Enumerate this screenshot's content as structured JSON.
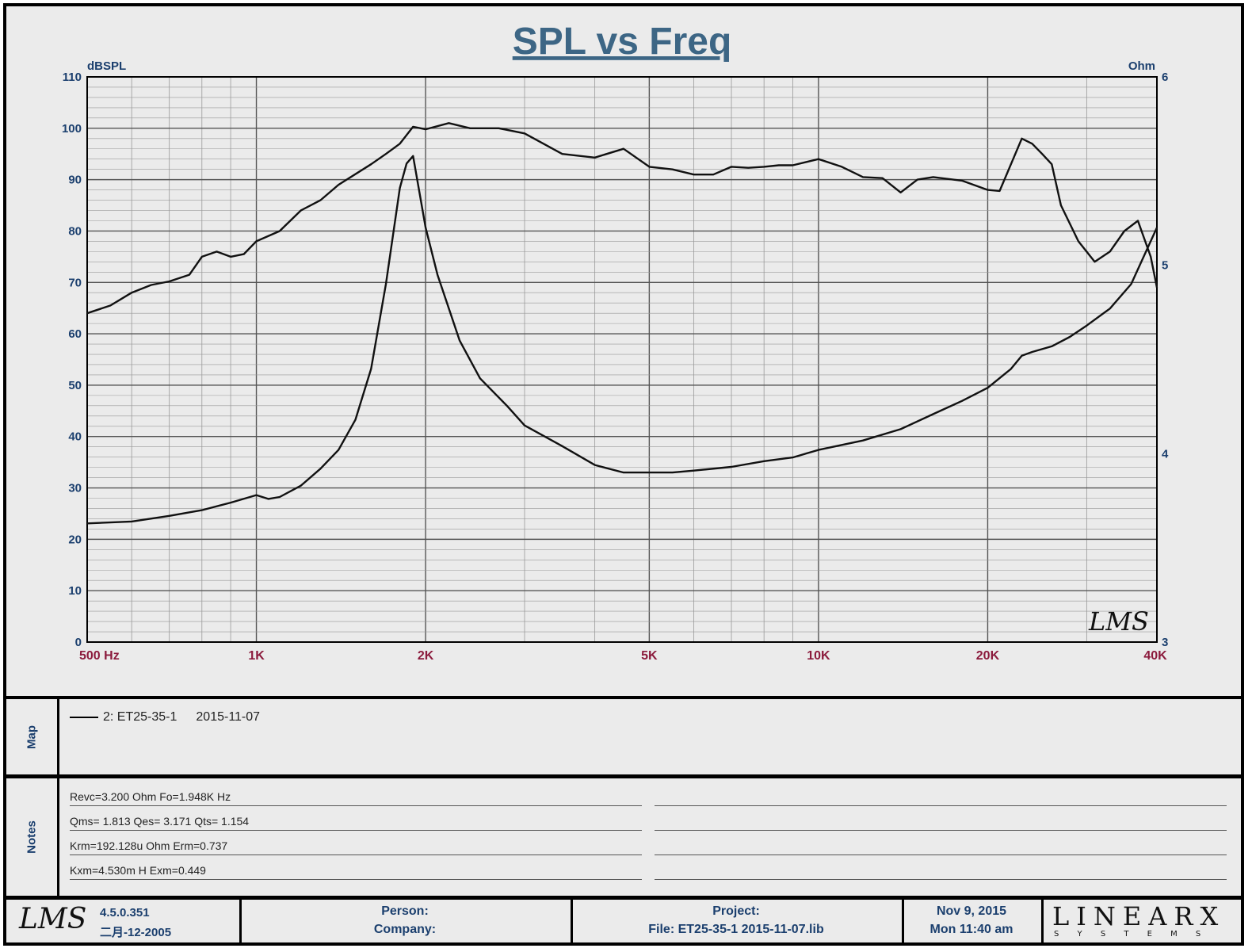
{
  "chart_data": {
    "type": "line",
    "title": "SPL vs Freq",
    "y_left_unit": "dBSPL",
    "y_right_unit": "Ohm",
    "x_scale": "log",
    "xlim": [
      500,
      40000
    ],
    "ylim_left": [
      0,
      110
    ],
    "ylim_right": [
      3,
      6
    ],
    "x_ticks": [
      {
        "value": 500,
        "label": "500  Hz"
      },
      {
        "value": 1000,
        "label": "1K"
      },
      {
        "value": 2000,
        "label": "2K"
      },
      {
        "value": 5000,
        "label": "5K"
      },
      {
        "value": 10000,
        "label": "10K"
      },
      {
        "value": 20000,
        "label": "20K"
      },
      {
        "value": 40000,
        "label": "40K"
      }
    ],
    "y_left_ticks": [
      0,
      10,
      20,
      30,
      40,
      50,
      60,
      70,
      80,
      90,
      100,
      110
    ],
    "y_right_ticks": [
      3,
      4,
      5,
      6
    ],
    "grid": true,
    "series": [
      {
        "axis": "left",
        "points": [
          [
            500,
            64
          ],
          [
            550,
            65.5
          ],
          [
            600,
            68
          ],
          [
            650,
            69.5
          ],
          [
            700,
            70.2
          ],
          [
            760,
            71.5
          ],
          [
            800,
            75
          ],
          [
            850,
            76
          ],
          [
            900,
            75
          ],
          [
            950,
            75.5
          ],
          [
            1000,
            78
          ],
          [
            1100,
            80
          ],
          [
            1200,
            84
          ],
          [
            1300,
            86
          ],
          [
            1400,
            89
          ],
          [
            1600,
            93
          ],
          [
            1700,
            95
          ],
          [
            1800,
            97
          ],
          [
            1900,
            100.3
          ],
          [
            2000,
            99.8
          ],
          [
            2200,
            101
          ],
          [
            2400,
            100
          ],
          [
            2700,
            100
          ],
          [
            3000,
            99
          ],
          [
            3500,
            95
          ],
          [
            4000,
            94.3
          ],
          [
            4500,
            96
          ],
          [
            5000,
            92.5
          ],
          [
            5500,
            92
          ],
          [
            6000,
            91
          ],
          [
            6500,
            91
          ],
          [
            7000,
            92.5
          ],
          [
            7500,
            92.3
          ],
          [
            8000,
            92.5
          ],
          [
            8500,
            92.8
          ],
          [
            9000,
            92.8
          ],
          [
            10000,
            94
          ],
          [
            11000,
            92.5
          ],
          [
            12000,
            90.5
          ],
          [
            13000,
            90.3
          ],
          [
            14000,
            87.5
          ],
          [
            15000,
            90
          ],
          [
            16000,
            90.5
          ],
          [
            18000,
            89.8
          ],
          [
            20000,
            88
          ],
          [
            21000,
            87.8
          ],
          [
            22000,
            93
          ],
          [
            23000,
            98
          ],
          [
            24000,
            97
          ],
          [
            25000,
            95
          ],
          [
            26000,
            93
          ],
          [
            27000,
            85
          ],
          [
            29000,
            78
          ],
          [
            31000,
            74
          ],
          [
            33000,
            76
          ],
          [
            35000,
            80
          ],
          [
            37000,
            82
          ],
          [
            39000,
            75
          ],
          [
            40000,
            69
          ]
        ]
      },
      {
        "axis": "right",
        "points": [
          [
            500,
            3.63
          ],
          [
            600,
            3.64
          ],
          [
            700,
            3.67
          ],
          [
            800,
            3.7
          ],
          [
            900,
            3.74
          ],
          [
            1000,
            3.78
          ],
          [
            1050,
            3.76
          ],
          [
            1100,
            3.77
          ],
          [
            1200,
            3.83
          ],
          [
            1300,
            3.92
          ],
          [
            1400,
            4.02
          ],
          [
            1500,
            4.18
          ],
          [
            1600,
            4.45
          ],
          [
            1700,
            4.9
          ],
          [
            1800,
            5.41
          ],
          [
            1850,
            5.54
          ],
          [
            1900,
            5.58
          ],
          [
            2000,
            5.2
          ],
          [
            2100,
            4.95
          ],
          [
            2300,
            4.6
          ],
          [
            2500,
            4.4
          ],
          [
            2800,
            4.25
          ],
          [
            3000,
            4.15
          ],
          [
            3500,
            4.04
          ],
          [
            4000,
            3.94
          ],
          [
            4500,
            3.9
          ],
          [
            5000,
            3.9
          ],
          [
            5500,
            3.9
          ],
          [
            6000,
            3.91
          ],
          [
            7000,
            3.93
          ],
          [
            8000,
            3.96
          ],
          [
            9000,
            3.98
          ],
          [
            10000,
            4.02
          ],
          [
            12000,
            4.07
          ],
          [
            14000,
            4.13
          ],
          [
            16000,
            4.21
          ],
          [
            18000,
            4.28
          ],
          [
            20000,
            4.35
          ],
          [
            22000,
            4.45
          ],
          [
            23000,
            4.52
          ],
          [
            24000,
            4.54
          ],
          [
            26000,
            4.57
          ],
          [
            28000,
            4.62
          ],
          [
            30000,
            4.68
          ],
          [
            33000,
            4.77
          ],
          [
            36000,
            4.9
          ],
          [
            40000,
            5.2
          ]
        ]
      }
    ]
  },
  "watermark": "LMS",
  "map": {
    "label": "Map",
    "entry_name": "2: ET25-35-1",
    "entry_date": "2015-11-07"
  },
  "notes": {
    "label": "Notes",
    "lines": [
      "Revc=3.200 Ohm  Fo=1.948K Hz",
      "Qms= 1.813  Qes= 3.171  Qts= 1.154",
      "Krm=192.128u Ohm  Erm=0.737",
      "Kxm=4.530m H  Exm=0.449"
    ]
  },
  "footer": {
    "logo": "LMS",
    "version": "4.5.0.351",
    "build_date": "二月-12-2005",
    "person_label": "Person:",
    "company_label": "Company:",
    "project_label": "Project:",
    "file_line": "File: ET25-35-1   2015-11-07.lib",
    "date": "Nov  9, 2015",
    "time": "Mon 11:40 am",
    "brand": "LINEARX",
    "brand_sub": "S Y S T E M S"
  },
  "colors": {
    "axis_label": "#1b3f6e",
    "x_label": "#8b1a3c",
    "title": "#3d6685",
    "grid_major": "#555555",
    "grid_minor": "#999999",
    "curve": "#111111"
  }
}
